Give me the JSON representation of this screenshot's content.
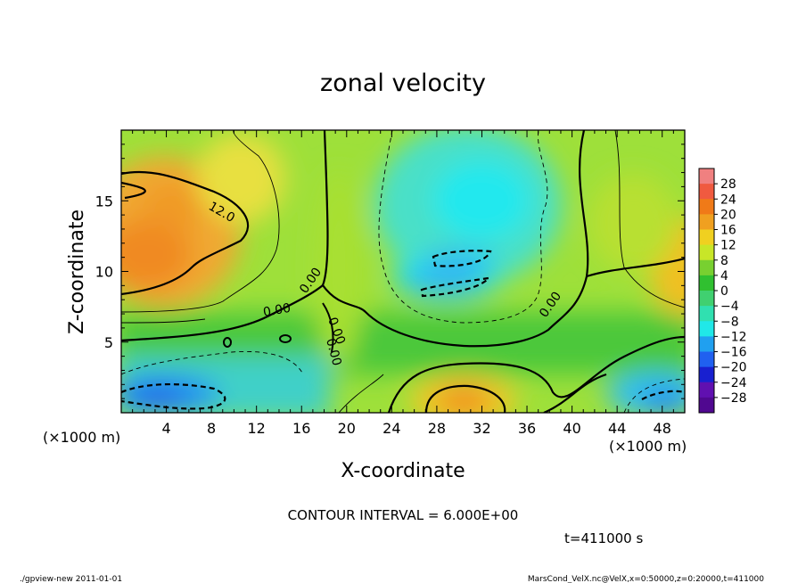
{
  "chart_data": {
    "type": "heatmap",
    "title": "zonal velocity",
    "xlabel": "X-coordinate",
    "ylabel": "Z-coordinate",
    "x_unit": "(×1000 m)",
    "z_unit": "(×1000 m)",
    "xlim": [
      0,
      50
    ],
    "ylim": [
      0,
      20
    ],
    "xticks": [
      "4",
      "8",
      "12",
      "16",
      "20",
      "24",
      "28",
      "32",
      "36",
      "40",
      "44",
      "48"
    ],
    "yticks": [
      "5",
      "10",
      "15"
    ],
    "colorbar": {
      "levels": [
        "28",
        "24",
        "20",
        "16",
        "12",
        "8",
        "4",
        "0",
        "−4",
        "−8",
        "−12",
        "−16",
        "−20",
        "−24",
        "−28"
      ],
      "colors": [
        "#f08080",
        "#f05a40",
        "#f07a18",
        "#f0a020",
        "#f0d020",
        "#c8e628",
        "#78d030",
        "#30c030",
        "#40d070",
        "#30e0b0",
        "#20e8e8",
        "#20a0f0",
        "#2060f0",
        "#1820d0",
        "#6010b0",
        "#500890"
      ]
    },
    "contour_labels": [
      "12.0",
      "0.00",
      "0.00",
      "0.00",
      "0.00",
      "0.00"
    ],
    "contour_interval": "CONTOUR INTERVAL = 6.000E+00",
    "time": "t=411000 s",
    "field_peaks": [
      {
        "x": 2,
        "z": 14,
        "value": 16
      },
      {
        "x": 30,
        "z": 1,
        "value": 16
      },
      {
        "x": 50,
        "z": 12,
        "value": 12
      },
      {
        "x": 4,
        "z": 1.5,
        "value": -18
      },
      {
        "x": 31,
        "z": 17,
        "value": -12
      },
      {
        "x": 30,
        "z": 9.5,
        "value": -12
      },
      {
        "x": 47,
        "z": 1,
        "value": -12
      }
    ]
  },
  "footer": {
    "left": "./gpview-new   2011-01-01",
    "right": "MarsCond_VelX.nc@VelX,x=0:50000,z=0:20000,t=411000"
  }
}
